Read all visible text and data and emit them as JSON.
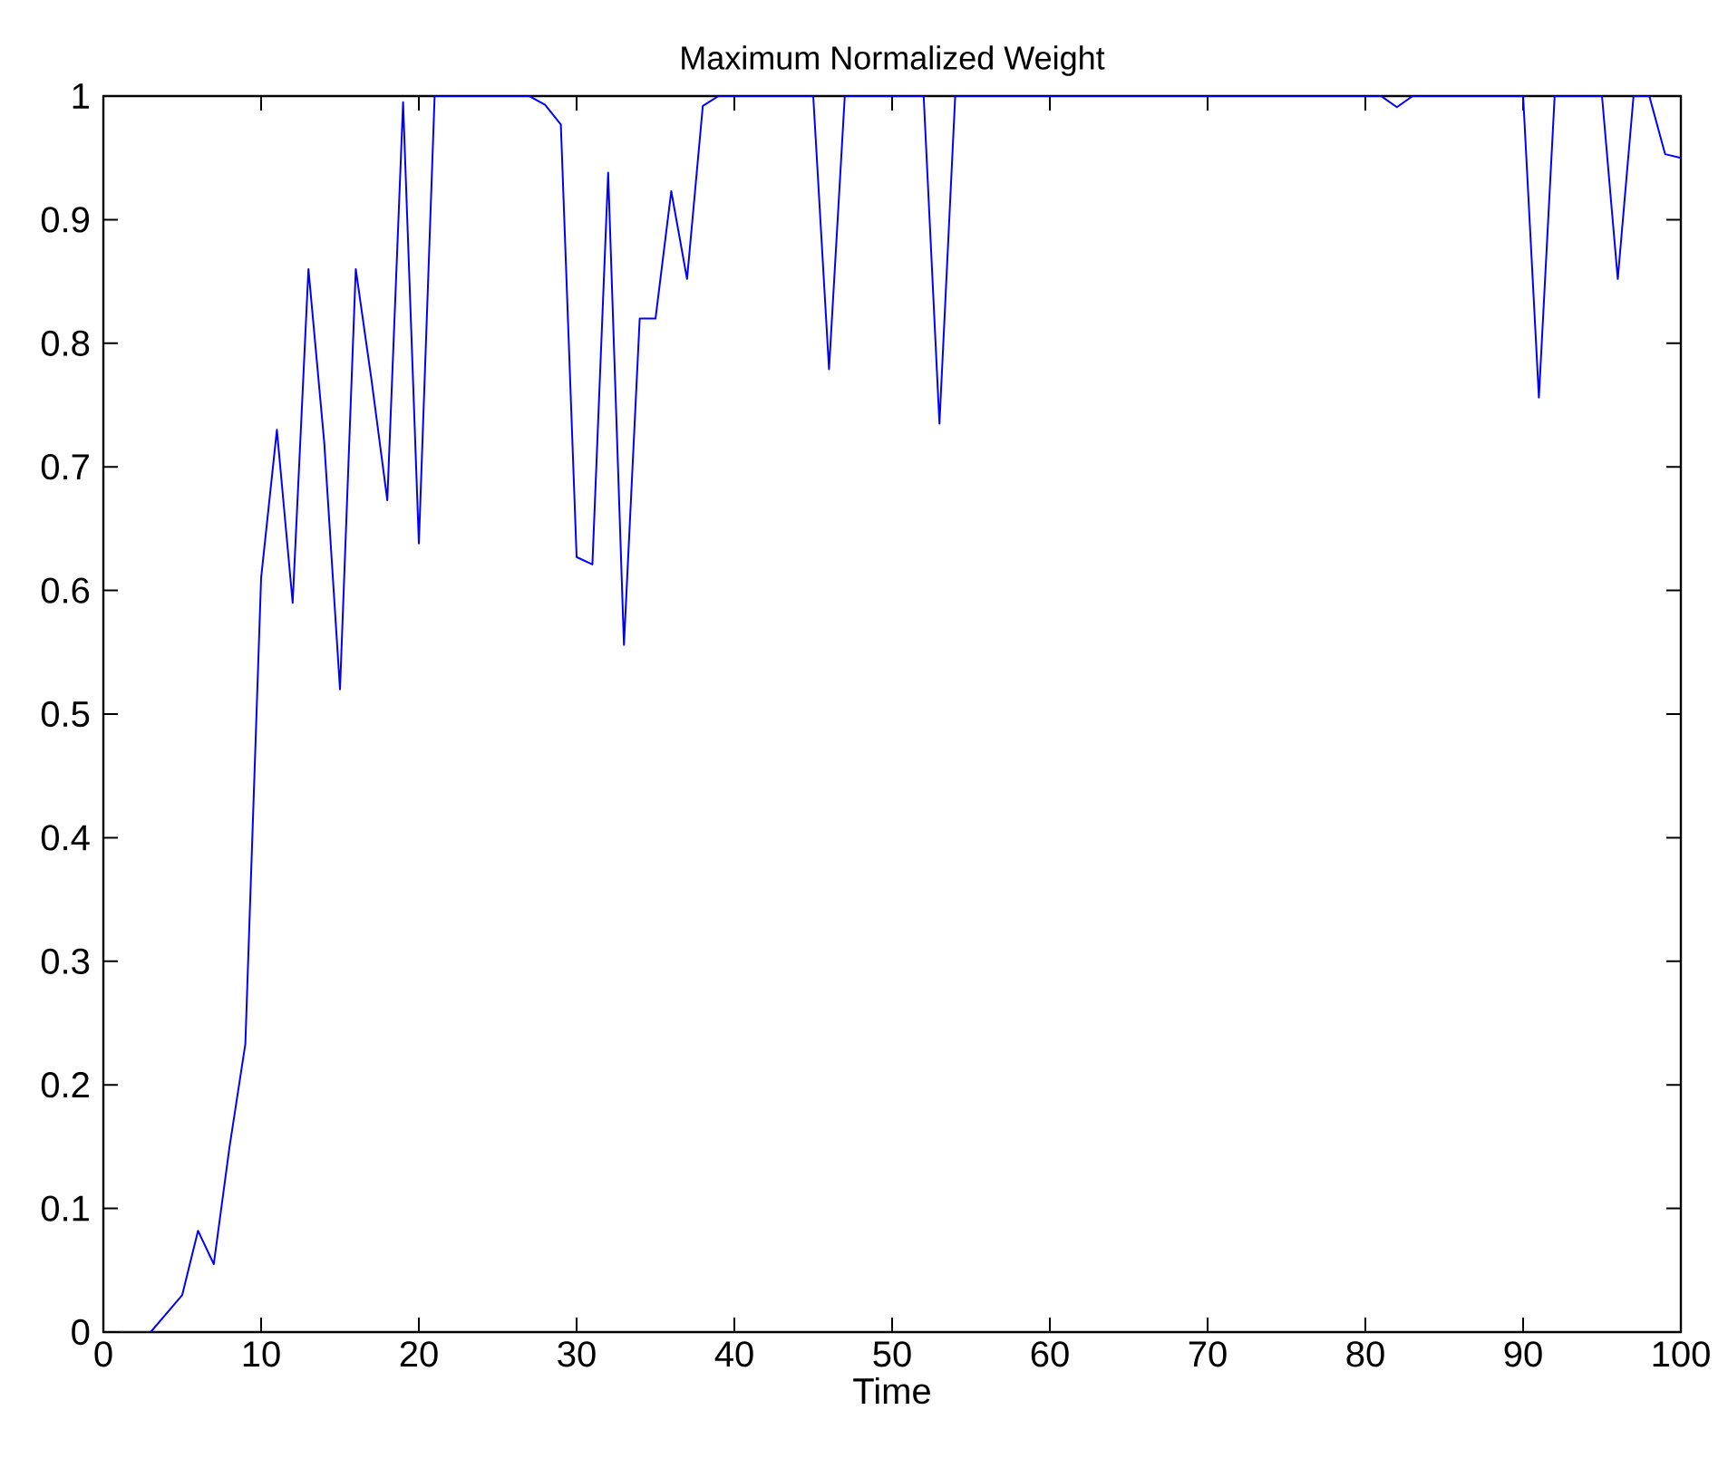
{
  "chart_data": {
    "type": "line",
    "title": "Maximum Normalized Weight",
    "xlabel": "Time",
    "xlim": [
      0,
      100
    ],
    "ylim": [
      0,
      1
    ],
    "xticks": [
      0,
      10,
      20,
      30,
      40,
      50,
      60,
      70,
      80,
      90,
      100
    ],
    "yticks": [
      0,
      0.1,
      0.2,
      0.3,
      0.4,
      0.5,
      0.6,
      0.7,
      0.8,
      0.9,
      1
    ],
    "grid": false,
    "marker": "none",
    "line_style": "solid",
    "series": [
      {
        "color": "#0000ff",
        "x": [
          1,
          3,
          5,
          6,
          7,
          8,
          9,
          10,
          11,
          12,
          13,
          14,
          15,
          16,
          17,
          18,
          19,
          20,
          21,
          27,
          28,
          29,
          30,
          31,
          32,
          33,
          34,
          35,
          36,
          37,
          38,
          39,
          45,
          46,
          47,
          52,
          53,
          54,
          81,
          82,
          83,
          90,
          91,
          92,
          95,
          96,
          97,
          98,
          99,
          100
        ],
        "values": [
          0,
          0,
          0.03,
          0.082,
          0.055,
          0.15,
          0.233,
          0.61,
          0.73,
          0.59,
          0.86,
          0.72,
          0.52,
          0.86,
          0.77,
          0.673,
          0.995,
          0.638,
          1,
          1,
          0.993,
          0.977,
          0.627,
          0.621,
          0.938,
          0.556,
          0.82,
          0.82,
          0.923,
          0.852,
          0.992,
          1,
          1,
          0.779,
          1,
          1,
          0.735,
          1,
          1,
          0.991,
          1,
          1,
          0.756,
          1,
          1,
          0.852,
          1,
          1,
          0.953,
          0.95
        ]
      }
    ]
  }
}
